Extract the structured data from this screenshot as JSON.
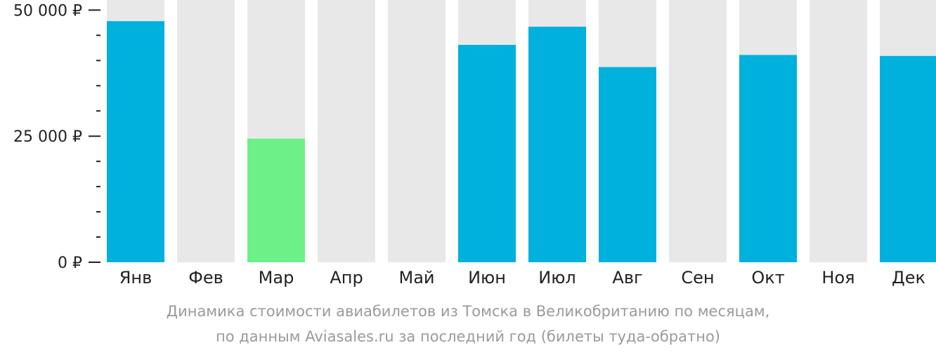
{
  "chart_data": {
    "type": "bar",
    "categories": [
      "Янв",
      "Фев",
      "Мар",
      "Апр",
      "Май",
      "Июн",
      "Июл",
      "Авг",
      "Сен",
      "Окт",
      "Ноя",
      "Дек"
    ],
    "values": [
      47800,
      null,
      24500,
      null,
      null,
      43100,
      46700,
      38700,
      null,
      41100,
      null,
      40900
    ],
    "highlight_category": "Мар",
    "ylim": [
      0,
      52000
    ],
    "y_tick_labels": [
      {
        "value": 0,
        "label": "0 ₽"
      },
      {
        "value": 25000,
        "label": "25 000 ₽"
      },
      {
        "value": 50000,
        "label": "50 000 ₽"
      }
    ],
    "y_minor_tick_step": 5000,
    "title": "",
    "xlabel": "",
    "ylabel": "",
    "grid": false,
    "colors": {
      "bar": "#00b0dd",
      "highlight": "#6cf087",
      "background_bar": "#e8e8e8",
      "axis": "#222222"
    }
  },
  "caption": {
    "line1": "Динамика стоимости авиабилетов из Томска в Великобританию по месяцам,",
    "line2": "по данным Aviasales.ru за последний год (билеты туда-обратно)"
  }
}
